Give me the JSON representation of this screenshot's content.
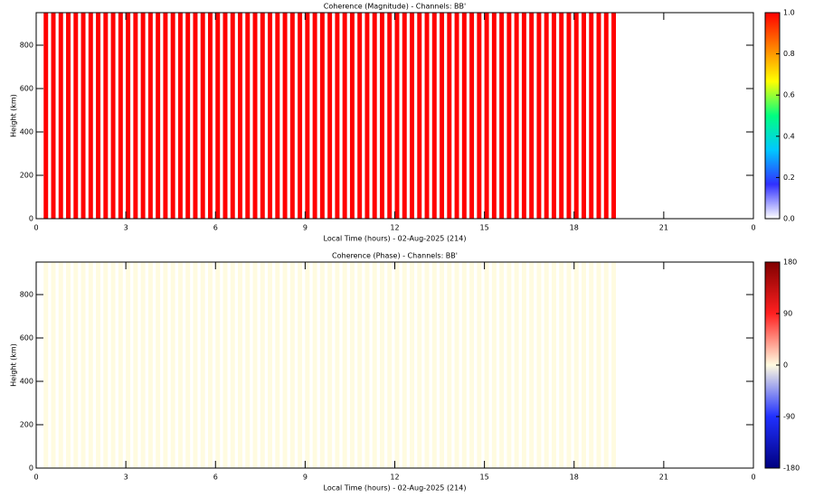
{
  "chart_data": [
    {
      "type": "heatmap",
      "title": "Coherence (Magnitude) - Channels: BB'",
      "x_label": "Local Time (hours) - 02-Aug-2025 (214)",
      "y_label": "Height (km)",
      "x": [
        0.25,
        0.5,
        0.75,
        1,
        1.25,
        1.5,
        1.75,
        2,
        2.25,
        2.5,
        2.75,
        3,
        3.25,
        3.5,
        3.75,
        4,
        4.25,
        4.5,
        4.75,
        5,
        5.25,
        5.5,
        5.75,
        6,
        6.25,
        6.5,
        6.75,
        7,
        7.25,
        7.5,
        7.75,
        8,
        8.25,
        8.5,
        8.75,
        9,
        9.25,
        9.5,
        9.75,
        10,
        10.25,
        10.5,
        10.75,
        11,
        11.25,
        11.5,
        11.75,
        12,
        12.25,
        12.5,
        12.75,
        13,
        13.25,
        13.5,
        13.75,
        14,
        14.25,
        14.5,
        14.75,
        15,
        15.25,
        15.5,
        15.75,
        16,
        16.25,
        16.5,
        16.75,
        17,
        17.25,
        17.5,
        17.75,
        18,
        18.25,
        18.5,
        18.75,
        19,
        19.25
      ],
      "values": [
        1,
        1,
        1,
        1,
        1,
        1,
        1,
        1,
        1,
        1,
        1,
        1,
        1,
        1,
        1,
        1,
        1,
        1,
        1,
        1,
        1,
        1,
        1,
        1,
        1,
        1,
        1,
        1,
        1,
        1,
        1,
        1,
        1,
        1,
        1,
        1,
        1,
        1,
        1,
        1,
        1,
        1,
        1,
        1,
        1,
        1,
        1,
        1,
        1,
        1,
        1,
        1,
        1,
        1,
        1,
        1,
        1,
        1,
        1,
        1,
        1,
        1,
        1,
        1,
        1,
        1,
        1,
        1,
        1,
        1,
        1,
        1,
        1,
        1,
        1,
        1,
        1
      ],
      "xlim": [
        0,
        24
      ],
      "xticks": [
        0,
        3,
        6,
        9,
        12,
        15,
        18,
        21,
        {
          "value": 24,
          "label": "0"
        }
      ],
      "ylim": [
        0,
        950
      ],
      "yticks": [
        0,
        200,
        400,
        600,
        800
      ],
      "zlim": [
        0,
        1
      ],
      "zticks": [
        {
          "value": 0,
          "label": "0.0"
        },
        {
          "value": 0.2,
          "label": "0.2"
        },
        {
          "value": 0.4,
          "label": "0.4"
        },
        {
          "value": 0.6,
          "label": "0.6"
        },
        {
          "value": 0.8,
          "label": "0.8"
        },
        {
          "value": 1,
          "label": "1.0"
        }
      ],
      "colorscale": [
        "#ffffff",
        "#3030ff",
        "#00c8ff",
        "#00ff80",
        "#ffff00",
        "#ff8000",
        "#ff0000"
      ]
    },
    {
      "type": "heatmap",
      "title": "Coherence (Phase) - Channels: BB'",
      "x_label": "Local Time (hours) - 02-Aug-2025 (214)",
      "y_label": "Height (km)",
      "x": [
        0.25,
        0.5,
        0.75,
        1,
        1.25,
        1.5,
        1.75,
        2,
        2.25,
        2.5,
        2.75,
        3,
        3.25,
        3.5,
        3.75,
        4,
        4.25,
        4.5,
        4.75,
        5,
        5.25,
        5.5,
        5.75,
        6,
        6.25,
        6.5,
        6.75,
        7,
        7.25,
        7.5,
        7.75,
        8,
        8.25,
        8.5,
        8.75,
        9,
        9.25,
        9.5,
        9.75,
        10,
        10.25,
        10.5,
        10.75,
        11,
        11.25,
        11.5,
        11.75,
        12,
        12.25,
        12.5,
        12.75,
        13,
        13.25,
        13.5,
        13.75,
        14,
        14.25,
        14.5,
        14.75,
        15,
        15.25,
        15.5,
        15.75,
        16,
        16.25,
        16.5,
        16.75,
        17,
        17.25,
        17.5,
        17.75,
        18,
        18.25,
        18.5,
        18.75,
        19,
        19.25
      ],
      "values": [
        0,
        0,
        0,
        0,
        0,
        0,
        0,
        0,
        0,
        0,
        0,
        0,
        0,
        0,
        0,
        0,
        0,
        0,
        0,
        0,
        0,
        0,
        0,
        0,
        0,
        0,
        0,
        0,
        0,
        0,
        0,
        0,
        0,
        0,
        0,
        0,
        0,
        0,
        0,
        0,
        0,
        0,
        0,
        0,
        0,
        0,
        0,
        0,
        0,
        0,
        0,
        0,
        0,
        0,
        0,
        0,
        0,
        0,
        0,
        0,
        0,
        0,
        0,
        0,
        0,
        0,
        0,
        0,
        0,
        0,
        0,
        0,
        0,
        0,
        0,
        0,
        0
      ],
      "xlim": [
        0,
        24
      ],
      "xticks": [
        0,
        3,
        6,
        9,
        12,
        15,
        18,
        21,
        {
          "value": 24,
          "label": "0"
        }
      ],
      "ylim": [
        0,
        950
      ],
      "yticks": [
        0,
        200,
        400,
        600,
        800
      ],
      "zlim": [
        -180,
        180
      ],
      "zticks": [
        -180,
        -90,
        0,
        90,
        180
      ],
      "colorscale": [
        "#000080",
        "#2030ff",
        "#fffbe0",
        "#ff2020",
        "#800000"
      ]
    }
  ]
}
